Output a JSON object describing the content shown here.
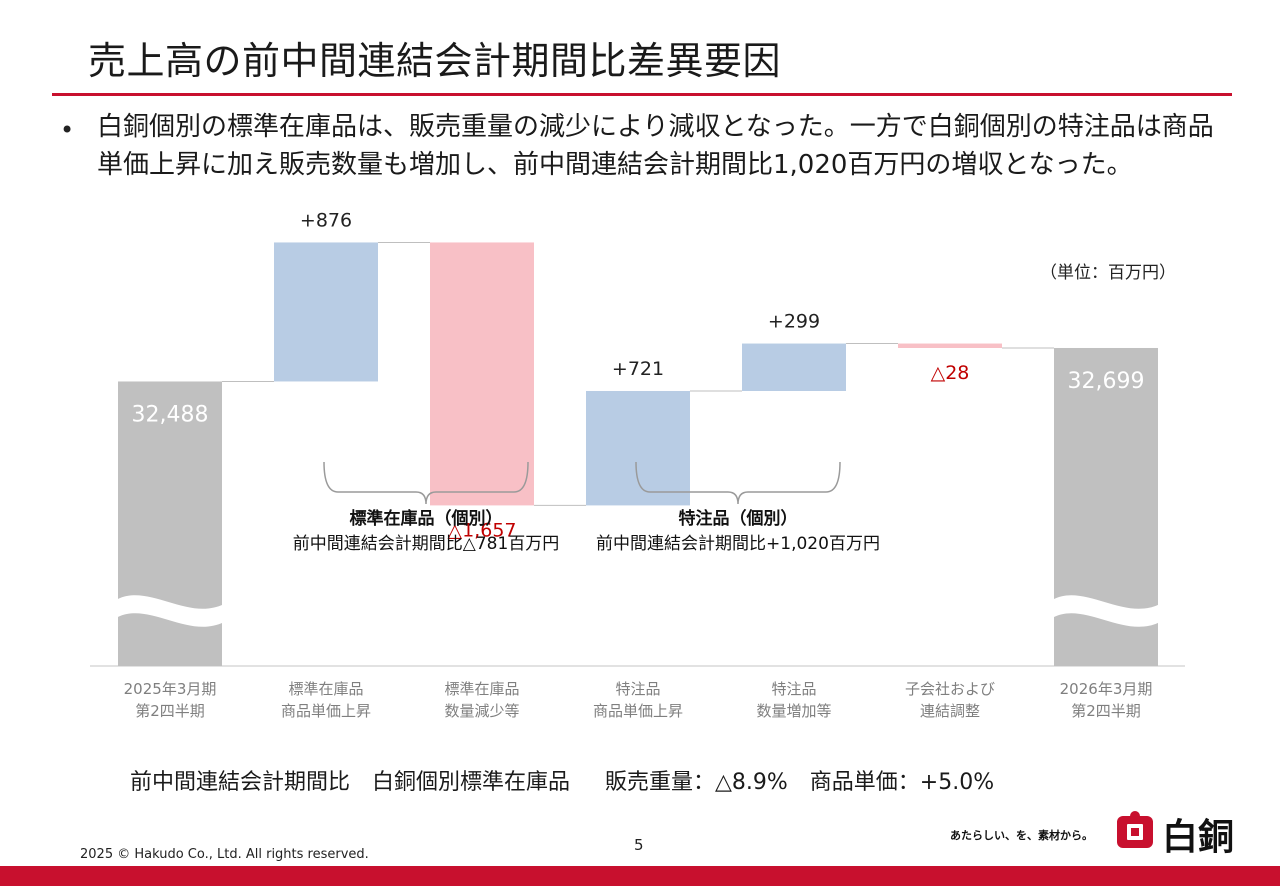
{
  "slide": {
    "title": "売上高の前中間連結会計期間比差異要因",
    "bullet_symbol": "•",
    "bullet_text": "白銅個別の標準在庫品は、販売重量の減少により減収となった。一方で白銅個別の特注品は商品単価上昇に加え販売数量も増加し、前中間連結会計期間比1,020百万円の増収となった。",
    "unit_label": "（単位：百万円）",
    "summary": "前中間連結会計期間比　白銅個別標準在庫品　 販売重量：△8.9%　商品単価：+5.0%",
    "page_number": "5",
    "copyright": "2025 © Hakudo Co., Ltd. All rights reserved.",
    "tagline": "あたらしい、を、素材から。",
    "brand": "白銅"
  },
  "colors": {
    "accent": "#c8102e",
    "total_bar": "#c0c0c0",
    "increase_bar": "#b8cce4",
    "decrease_bar": "#f8c0c6",
    "negative_text": "#c00000"
  },
  "chart_data": {
    "type": "waterfall",
    "unit": "百万円",
    "ylim": [
      31300,
      33600
    ],
    "axis_break": true,
    "steps": [
      {
        "category": "2025年3月期\n第2四半期",
        "kind": "total",
        "value": 32488,
        "label": "32,488"
      },
      {
        "category": "標準在庫品\n商品単価上昇",
        "kind": "delta",
        "value": 876,
        "label": "+876"
      },
      {
        "category": "標準在庫品\n数量減少等",
        "kind": "delta",
        "value": -1657,
        "label": "△1,657"
      },
      {
        "category": "特注品\n商品単価上昇",
        "kind": "delta",
        "value": 721,
        "label": "+721"
      },
      {
        "category": "特注品\n数量増加等",
        "kind": "delta",
        "value": 299,
        "label": "+299"
      },
      {
        "category": "子会社および\n連結調整",
        "kind": "delta",
        "value": -28,
        "label": "△28"
      },
      {
        "category": "2026年3月期\n第2四半期",
        "kind": "total",
        "value": 32699,
        "label": "32,699"
      }
    ],
    "groups": [
      {
        "title": "標準在庫品（個別）",
        "subtitle": "前中間連結会計期間比△781百万円",
        "from": 1,
        "to": 2
      },
      {
        "title": "特注品（個別）",
        "subtitle": "前中間連結会計期間比+1,020百万円",
        "from": 3,
        "to": 4
      }
    ]
  }
}
